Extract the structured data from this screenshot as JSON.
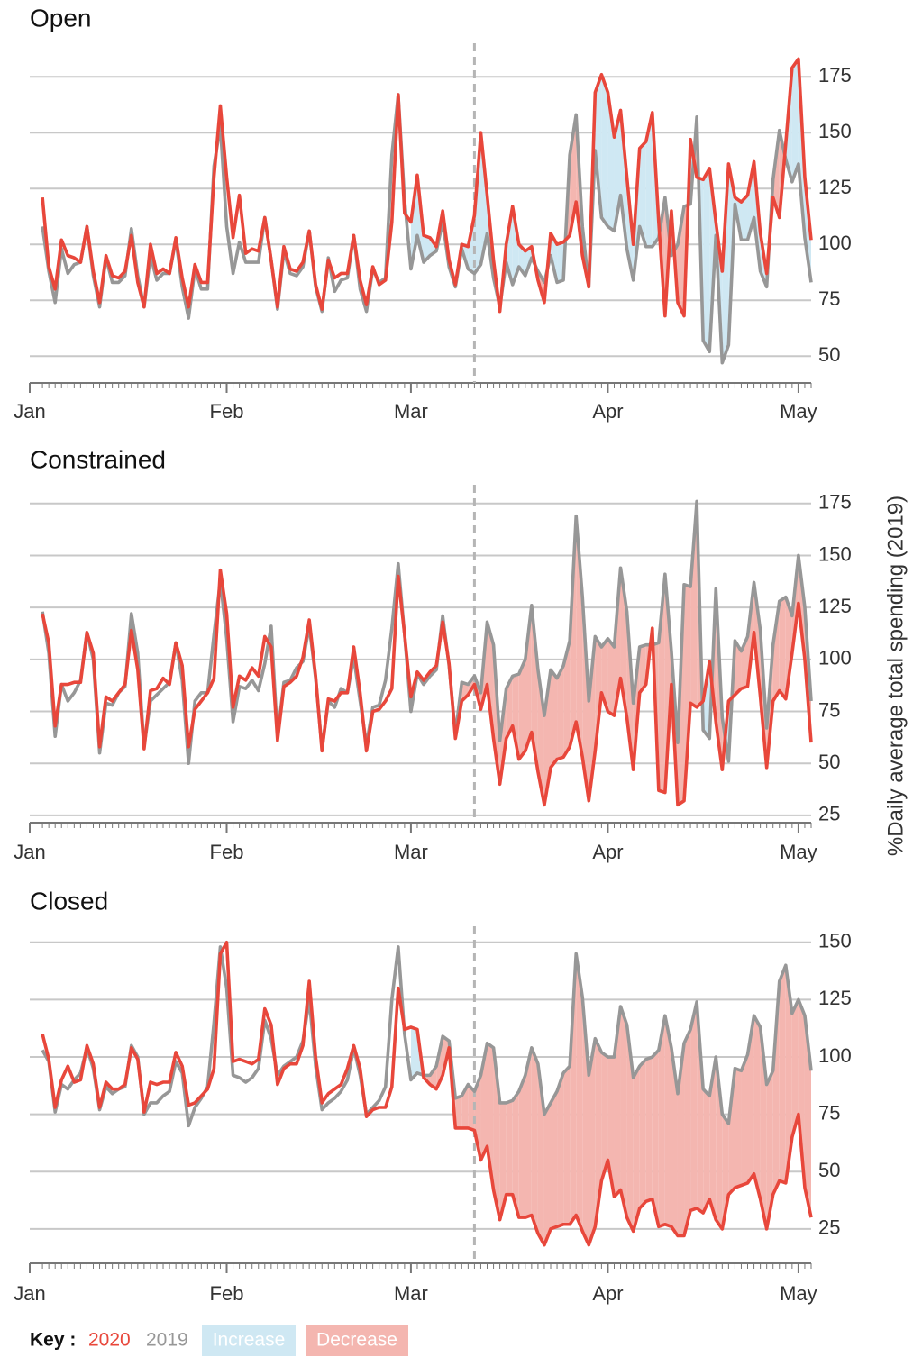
{
  "chart_data": [
    {
      "type": "line",
      "title": "Open",
      "xlim": [
        1,
        124
      ],
      "ylim": [
        38,
        190
      ],
      "grid": true,
      "vline": 71,
      "shade_from": 61,
      "xticks": [
        {
          "value": 1,
          "label": "Jan"
        },
        {
          "value": 32,
          "label": "Feb"
        },
        {
          "value": 61,
          "label": "Mar"
        },
        {
          "value": 92,
          "label": "Apr"
        },
        {
          "value": 122,
          "label": "May"
        }
      ],
      "yticks": [
        50,
        75,
        100,
        125,
        150,
        175
      ],
      "x": [
        3,
        4,
        5,
        6,
        7,
        8,
        9,
        10,
        11,
        12,
        13,
        14,
        15,
        16,
        17,
        18,
        19,
        20,
        21,
        22,
        23,
        24,
        25,
        26,
        27,
        28,
        29,
        30,
        31,
        32,
        33,
        34,
        35,
        36,
        37,
        38,
        39,
        40,
        41,
        42,
        43,
        44,
        45,
        46,
        47,
        48,
        49,
        50,
        51,
        52,
        53,
        54,
        55,
        56,
        57,
        58,
        59,
        60,
        61,
        62,
        63,
        64,
        65,
        66,
        67,
        68,
        69,
        70,
        71,
        72,
        73,
        74,
        75,
        76,
        77,
        78,
        79,
        80,
        81,
        82,
        83,
        84,
        85,
        86,
        87,
        88,
        89,
        90,
        91,
        92,
        93,
        94,
        95,
        96,
        97,
        98,
        99,
        100,
        101,
        102,
        103,
        104,
        105,
        106,
        107,
        108,
        109,
        110,
        111,
        112,
        113,
        114,
        115,
        116,
        117,
        118,
        119,
        120,
        121,
        122,
        123,
        124
      ],
      "series": [
        {
          "name": "2020",
          "color": "#e8473b",
          "values": [
            121,
            90,
            80,
            102,
            95,
            94,
            92,
            108,
            88,
            74,
            95,
            86,
            85,
            88,
            104,
            83,
            72,
            100,
            87,
            89,
            87,
            103,
            85,
            72,
            91,
            83,
            83,
            130,
            162,
            130,
            103,
            122,
            96,
            98,
            97,
            112,
            93,
            72,
            99,
            89,
            88,
            92,
            106,
            82,
            71,
            93,
            85,
            87,
            87,
            104,
            84,
            73,
            90,
            82,
            84,
            110,
            167,
            114,
            110,
            131,
            104,
            103,
            99,
            115,
            93,
            82,
            100,
            99,
            113,
            150,
            122,
            93,
            70,
            100,
            117,
            100,
            97,
            99,
            84,
            74,
            105,
            100,
            101,
            104,
            119,
            95,
            81,
            168,
            176,
            168,
            148,
            160,
            130,
            100,
            143,
            146,
            159,
            110,
            68,
            115,
            74,
            68,
            147,
            130,
            129,
            134,
            110,
            88,
            136,
            121,
            119,
            122,
            137,
            105,
            87,
            121,
            112,
            145,
            179,
            183,
            130,
            102
          ]
        },
        {
          "name": "2019",
          "color": "#979797",
          "values": [
            108,
            88,
            74,
            98,
            87,
            91,
            92,
            108,
            86,
            72,
            94,
            83,
            83,
            86,
            107,
            86,
            72,
            95,
            84,
            87,
            87,
            102,
            81,
            67,
            89,
            80,
            80,
            135,
            153,
            108,
            87,
            101,
            92,
            92,
            92,
            112,
            93,
            71,
            97,
            87,
            86,
            90,
            106,
            81,
            70,
            94,
            79,
            84,
            85,
            104,
            80,
            70,
            89,
            83,
            85,
            140,
            167,
            120,
            89,
            104,
            92,
            95,
            97,
            110,
            90,
            81,
            98,
            89,
            87,
            91,
            105,
            85,
            72,
            92,
            82,
            90,
            86,
            94,
            88,
            83,
            95,
            83,
            84,
            140,
            158,
            108,
            81,
            142,
            112,
            108,
            106,
            122,
            98,
            84,
            108,
            99,
            99,
            103,
            121,
            95,
            100,
            117,
            118,
            157,
            57,
            52,
            104,
            47,
            55,
            118,
            102,
            102,
            112,
            88,
            81,
            129,
            151,
            138,
            128,
            136,
            103,
            83
          ]
        }
      ]
    },
    {
      "type": "line",
      "title": "Constrained",
      "xlim": [
        1,
        124
      ],
      "ylim": [
        21.5,
        184
      ],
      "grid": true,
      "vline": 71,
      "shade_from": 61,
      "xticks": [
        {
          "value": 1,
          "label": "Jan"
        },
        {
          "value": 32,
          "label": "Feb"
        },
        {
          "value": 61,
          "label": "Mar"
        },
        {
          "value": 92,
          "label": "Apr"
        },
        {
          "value": 122,
          "label": "May"
        }
      ],
      "yticks": [
        25,
        50,
        75,
        100,
        125,
        150,
        175
      ],
      "x": [
        3,
        4,
        5,
        6,
        7,
        8,
        9,
        10,
        11,
        12,
        13,
        14,
        15,
        16,
        17,
        18,
        19,
        20,
        21,
        22,
        23,
        24,
        25,
        26,
        27,
        28,
        29,
        30,
        31,
        32,
        33,
        34,
        35,
        36,
        37,
        38,
        39,
        40,
        41,
        42,
        43,
        44,
        45,
        46,
        47,
        48,
        49,
        50,
        51,
        52,
        53,
        54,
        55,
        56,
        57,
        58,
        59,
        60,
        61,
        62,
        63,
        64,
        65,
        66,
        67,
        68,
        69,
        70,
        71,
        72,
        73,
        74,
        75,
        76,
        77,
        78,
        79,
        80,
        81,
        82,
        83,
        84,
        85,
        86,
        87,
        88,
        89,
        90,
        91,
        92,
        93,
        94,
        95,
        96,
        97,
        98,
        99,
        100,
        101,
        102,
        103,
        104,
        105,
        106,
        107,
        108,
        109,
        110,
        111,
        112,
        113,
        114,
        115,
        116,
        117,
        118,
        119,
        120,
        121,
        122,
        123,
        124
      ],
      "series": [
        {
          "name": "2020",
          "color": "#e8473b",
          "values": [
            122,
            108,
            68,
            88,
            88,
            89,
            89,
            113,
            103,
            58,
            82,
            80,
            84,
            88,
            114,
            95,
            57,
            85,
            86,
            91,
            88,
            108,
            97,
            58,
            76,
            80,
            84,
            91,
            143,
            122,
            77,
            92,
            90,
            96,
            92,
            111,
            106,
            61,
            87,
            89,
            92,
            101,
            119,
            92,
            56,
            81,
            80,
            84,
            84,
            106,
            84,
            56,
            75,
            76,
            80,
            86,
            140,
            112,
            82,
            94,
            90,
            94,
            97,
            118,
            98,
            62,
            80,
            83,
            88,
            76,
            88,
            62,
            40,
            62,
            68,
            52,
            56,
            65,
            46,
            30,
            48,
            52,
            53,
            58,
            70,
            53,
            32,
            56,
            84,
            75,
            73,
            91,
            72,
            47,
            84,
            88,
            115,
            37,
            36,
            88,
            30,
            32,
            79,
            77,
            80,
            99,
            70,
            47,
            80,
            83,
            86,
            87,
            113,
            82,
            48,
            80,
            85,
            81,
            103,
            127,
            100,
            60
          ]
        },
        {
          "name": "2019",
          "color": "#979797",
          "values": [
            123,
            103,
            63,
            88,
            80,
            84,
            90,
            113,
            100,
            55,
            79,
            78,
            84,
            87,
            122,
            103,
            58,
            80,
            83,
            86,
            89,
            108,
            90,
            50,
            80,
            84,
            84,
            112,
            138,
            110,
            70,
            87,
            86,
            90,
            85,
            98,
            116,
            63,
            89,
            90,
            96,
            99,
            116,
            91,
            57,
            80,
            77,
            86,
            84,
            101,
            80,
            59,
            77,
            78,
            90,
            115,
            146,
            112,
            75,
            93,
            88,
            92,
            95,
            121,
            97,
            64,
            89,
            88,
            92,
            84,
            118,
            107,
            61,
            86,
            92,
            93,
            100,
            126,
            95,
            73,
            95,
            91,
            97,
            109,
            169,
            130,
            80,
            111,
            106,
            110,
            106,
            144,
            123,
            79,
            106,
            107,
            107,
            108,
            141,
            104,
            60,
            136,
            135,
            176,
            66,
            62,
            134,
            72,
            51,
            109,
            104,
            111,
            137,
            114,
            67,
            107,
            128,
            130,
            121,
            150,
            125,
            80
          ]
        }
      ]
    },
    {
      "type": "line",
      "title": "Closed",
      "xlim": [
        1,
        124
      ],
      "ylim": [
        10,
        157
      ],
      "grid": true,
      "vline": 71,
      "shade_from": 61,
      "xticks": [
        {
          "value": 1,
          "label": "Jan"
        },
        {
          "value": 32,
          "label": "Feb"
        },
        {
          "value": 61,
          "label": "Mar"
        },
        {
          "value": 92,
          "label": "Apr"
        },
        {
          "value": 122,
          "label": "May"
        }
      ],
      "yticks": [
        25,
        50,
        75,
        100,
        125,
        150
      ],
      "x": [
        3,
        4,
        5,
        6,
        7,
        8,
        9,
        10,
        11,
        12,
        13,
        14,
        15,
        16,
        17,
        18,
        19,
        20,
        21,
        22,
        23,
        24,
        25,
        26,
        27,
        28,
        29,
        30,
        31,
        32,
        33,
        34,
        35,
        36,
        37,
        38,
        39,
        40,
        41,
        42,
        43,
        44,
        45,
        46,
        47,
        48,
        49,
        50,
        51,
        52,
        53,
        54,
        55,
        56,
        57,
        58,
        59,
        60,
        61,
        62,
        63,
        64,
        65,
        66,
        67,
        68,
        69,
        70,
        71,
        72,
        73,
        74,
        75,
        76,
        77,
        78,
        79,
        80,
        81,
        82,
        83,
        84,
        85,
        86,
        87,
        88,
        89,
        90,
        91,
        92,
        93,
        94,
        95,
        96,
        97,
        98,
        99,
        100,
        101,
        102,
        103,
        104,
        105,
        106,
        107,
        108,
        109,
        110,
        111,
        112,
        113,
        114,
        115,
        116,
        117,
        118,
        119,
        120,
        121,
        122,
        123,
        124
      ],
      "series": [
        {
          "name": "2020",
          "color": "#e8473b",
          "values": [
            110,
            99,
            78,
            90,
            96,
            89,
            90,
            105,
            97,
            78,
            89,
            86,
            86,
            88,
            104,
            99,
            76,
            89,
            88,
            89,
            89,
            102,
            96,
            79,
            80,
            83,
            86,
            95,
            145,
            150,
            98,
            99,
            98,
            97,
            99,
            121,
            114,
            88,
            95,
            97,
            97,
            105,
            133,
            100,
            80,
            84,
            86,
            88,
            95,
            105,
            95,
            74,
            77,
            78,
            78,
            87,
            130,
            112,
            113,
            112,
            91,
            88,
            86,
            92,
            104,
            69,
            69,
            69,
            68,
            55,
            61,
            42,
            29,
            40,
            40,
            30,
            30,
            31,
            23,
            18,
            25,
            26,
            27,
            27,
            31,
            24,
            18,
            26,
            46,
            55,
            39,
            42,
            30,
            24,
            34,
            37,
            38,
            26,
            27,
            26,
            22,
            22,
            33,
            34,
            32,
            38,
            29,
            25,
            40,
            43,
            44,
            45,
            49,
            38,
            25,
            40,
            46,
            45,
            65,
            75,
            43,
            30
          ]
        },
        {
          "name": "2019",
          "color": "#979797",
          "values": [
            103,
            98,
            76,
            88,
            86,
            90,
            93,
            104,
            95,
            77,
            87,
            84,
            86,
            87,
            105,
            100,
            75,
            80,
            80,
            83,
            85,
            98,
            93,
            70,
            78,
            82,
            87,
            115,
            148,
            130,
            92,
            91,
            89,
            91,
            95,
            116,
            108,
            92,
            96,
            98,
            100,
            107,
            125,
            96,
            77,
            80,
            82,
            85,
            90,
            104,
            92,
            75,
            78,
            81,
            87,
            125,
            148,
            110,
            90,
            93,
            92,
            92,
            96,
            109,
            107,
            82,
            83,
            88,
            85,
            92,
            106,
            104,
            80,
            80,
            81,
            85,
            92,
            104,
            97,
            75,
            80,
            85,
            93,
            96,
            145,
            126,
            92,
            108,
            102,
            100,
            100,
            122,
            114,
            91,
            96,
            99,
            100,
            103,
            118,
            104,
            84,
            106,
            112,
            124,
            86,
            83,
            100,
            75,
            71,
            95,
            94,
            101,
            118,
            113,
            88,
            94,
            133,
            140,
            119,
            125,
            118,
            94
          ]
        }
      ]
    }
  ],
  "y_label": "%Daily average total spending (2019)",
  "key": {
    "title": "Key :",
    "increase": {
      "label": "Increase",
      "color": "#cfe8f3"
    },
    "decrease": {
      "label": "Decrease",
      "color": "#f4b6b0"
    }
  }
}
